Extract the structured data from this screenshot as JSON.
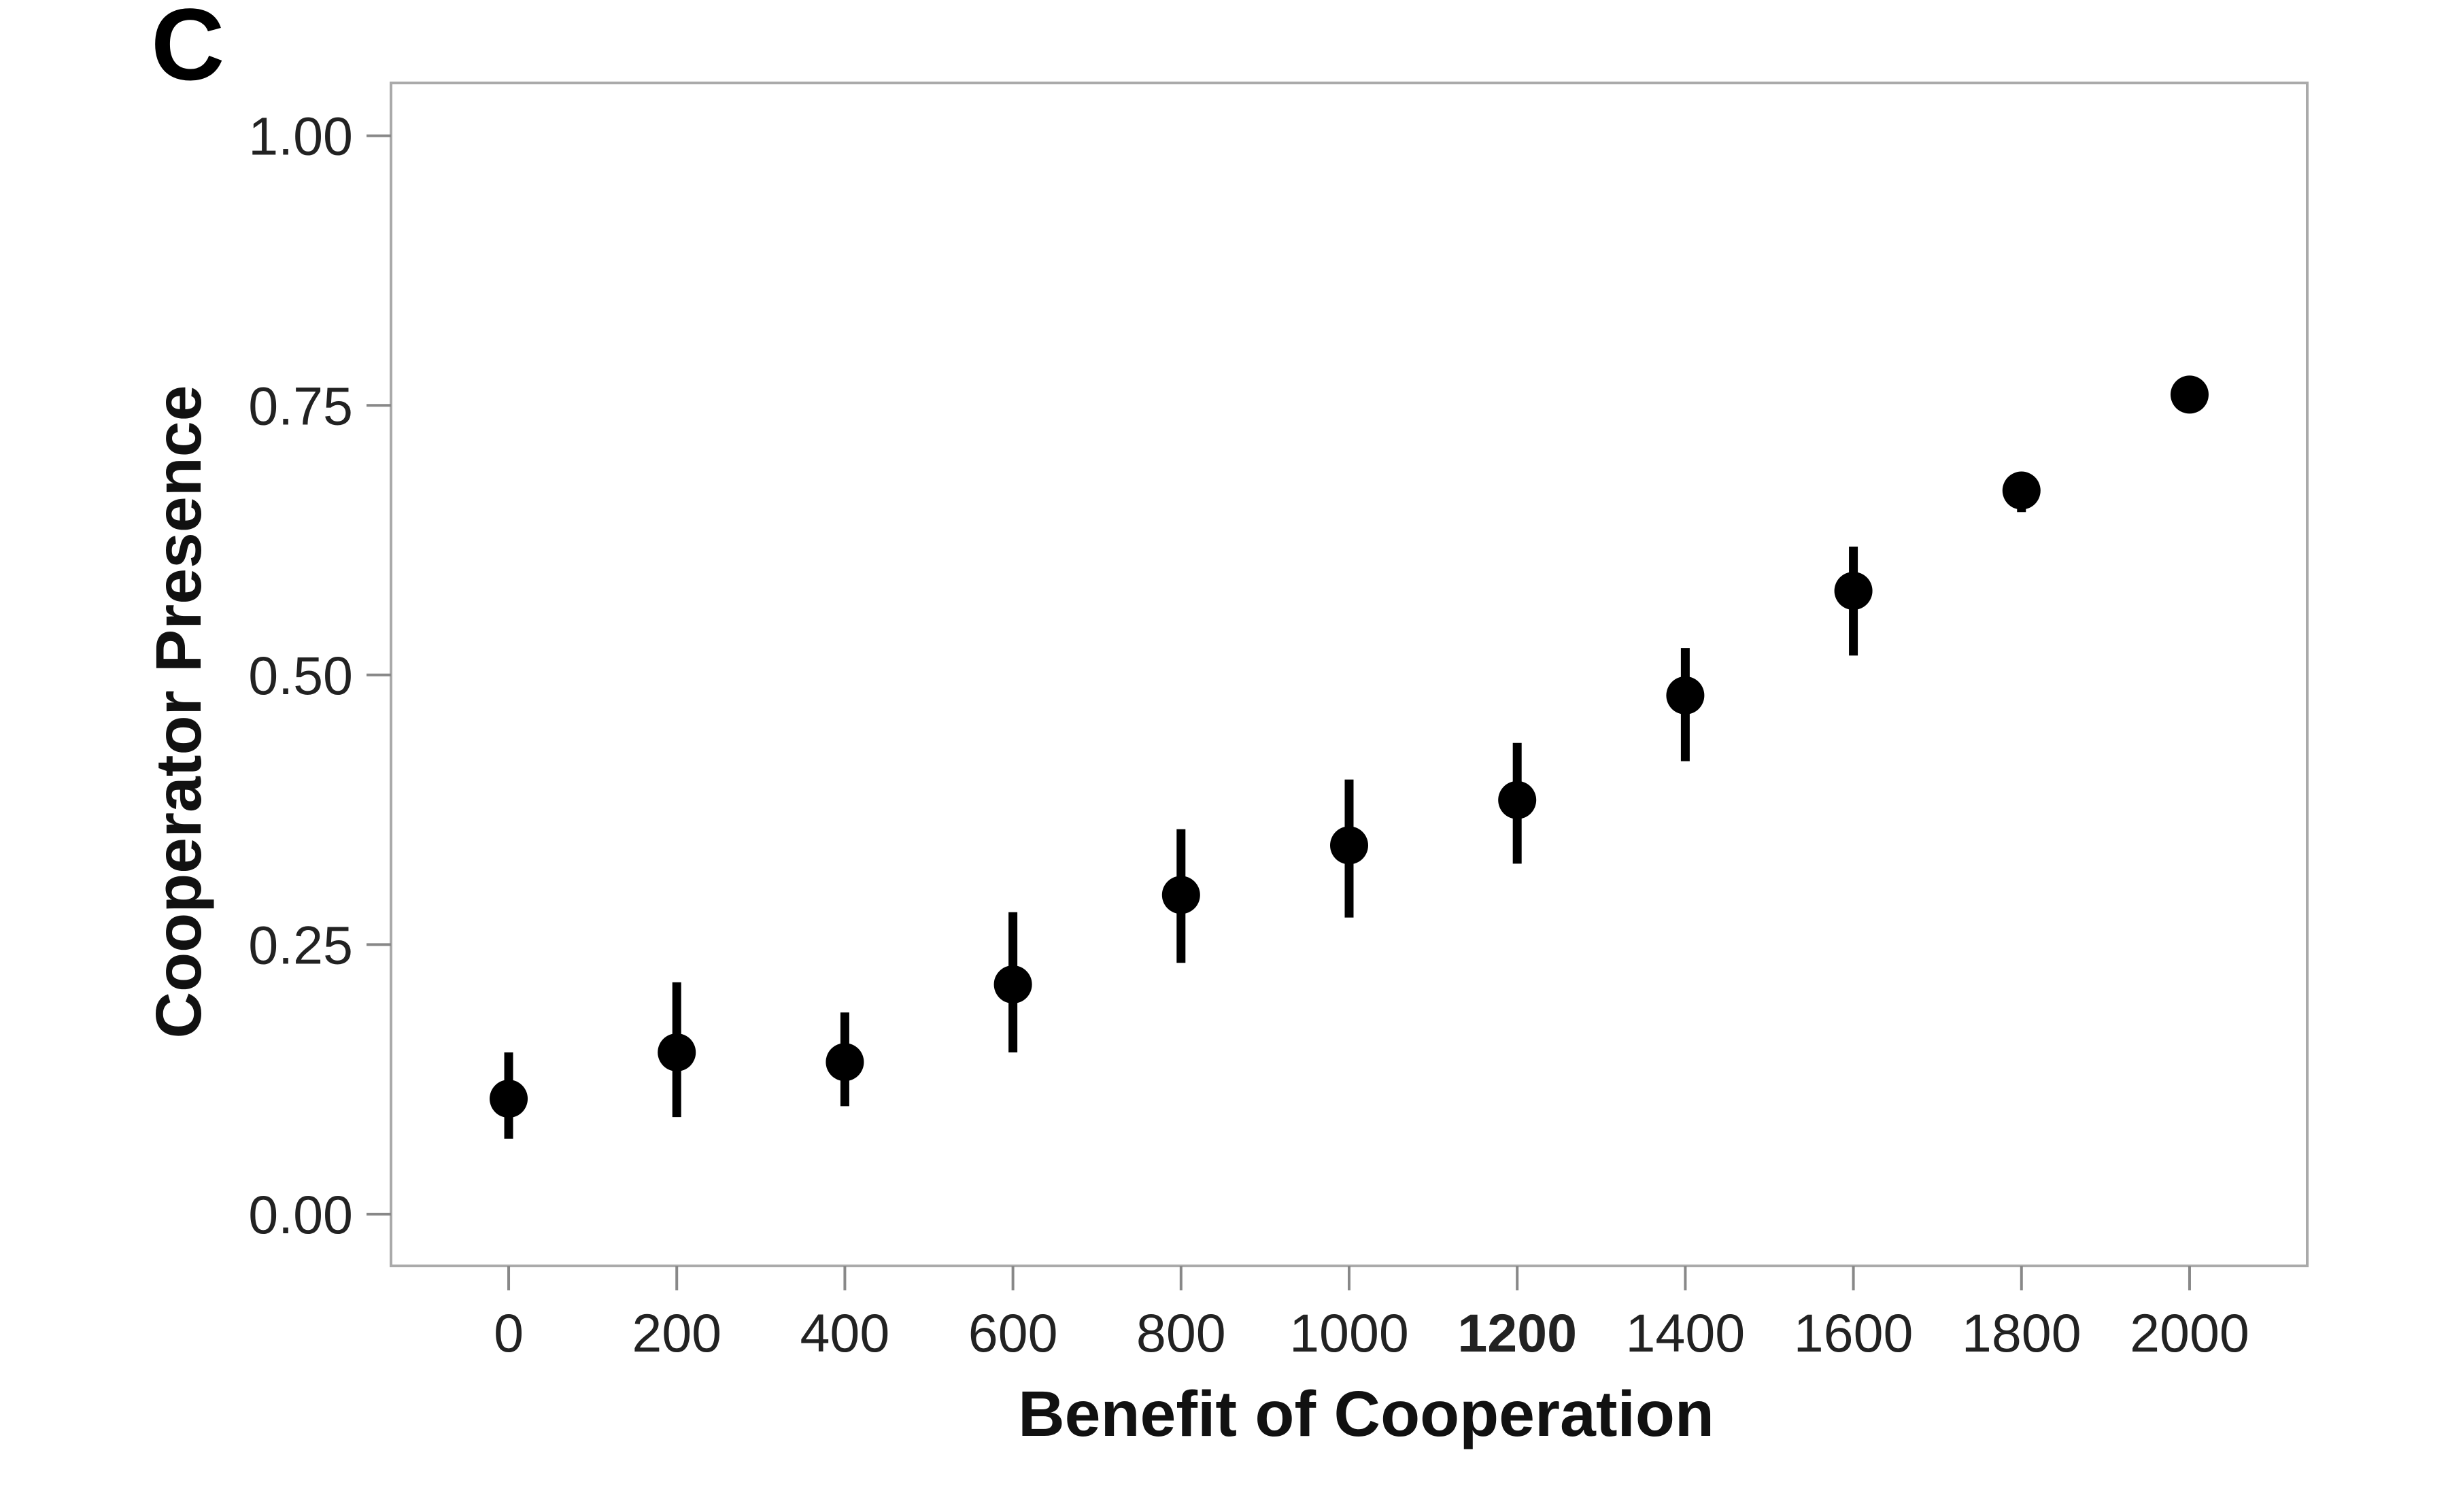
{
  "panel_label": "C",
  "colors": {
    "points": "#000000",
    "frame": "#aaaaaa",
    "ticks": "#888888",
    "text": "#222222"
  },
  "chart_data": {
    "type": "scatter",
    "title": "",
    "xlabel": "Benefit of Cooperation",
    "ylabel": "Cooperator Presence",
    "xlim": [
      -140,
      2140
    ],
    "ylim": [
      -0.048,
      1.049
    ],
    "x_ticks": [
      0,
      200,
      400,
      600,
      800,
      1000,
      1200,
      1400,
      1600,
      1800,
      2000
    ],
    "x_tick_labels": [
      "0",
      "200",
      "400",
      "600",
      "800",
      "1000",
      "1200",
      "1400",
      "1600",
      "1800",
      "2000"
    ],
    "x_tick_emphasized": "1200",
    "y_ticks": [
      0,
      0.25,
      0.5,
      0.75,
      1.0
    ],
    "y_tick_labels": [
      "0.00",
      "0.25",
      "0.50",
      "0.75",
      "1.00"
    ],
    "grid": false,
    "legend": "none",
    "error_bars": true,
    "points": [
      {
        "x": 0,
        "y": 0.107,
        "low": 0.07,
        "high": 0.15
      },
      {
        "x": 200,
        "y": 0.15,
        "low": 0.09,
        "high": 0.215
      },
      {
        "x": 400,
        "y": 0.141,
        "low": 0.1,
        "high": 0.187
      },
      {
        "x": 600,
        "y": 0.213,
        "low": 0.15,
        "high": 0.28
      },
      {
        "x": 800,
        "y": 0.296,
        "low": 0.233,
        "high": 0.357
      },
      {
        "x": 1000,
        "y": 0.342,
        "low": 0.275,
        "high": 0.403
      },
      {
        "x": 1200,
        "y": 0.384,
        "low": 0.325,
        "high": 0.437
      },
      {
        "x": 1400,
        "y": 0.481,
        "low": 0.42,
        "high": 0.525
      },
      {
        "x": 1600,
        "y": 0.578,
        "low": 0.518,
        "high": 0.619
      },
      {
        "x": 1800,
        "y": 0.671,
        "low": 0.651,
        "high": 0.671
      },
      {
        "x": 2000,
        "y": 0.76,
        "low": 0.76,
        "high": 0.76
      }
    ]
  }
}
